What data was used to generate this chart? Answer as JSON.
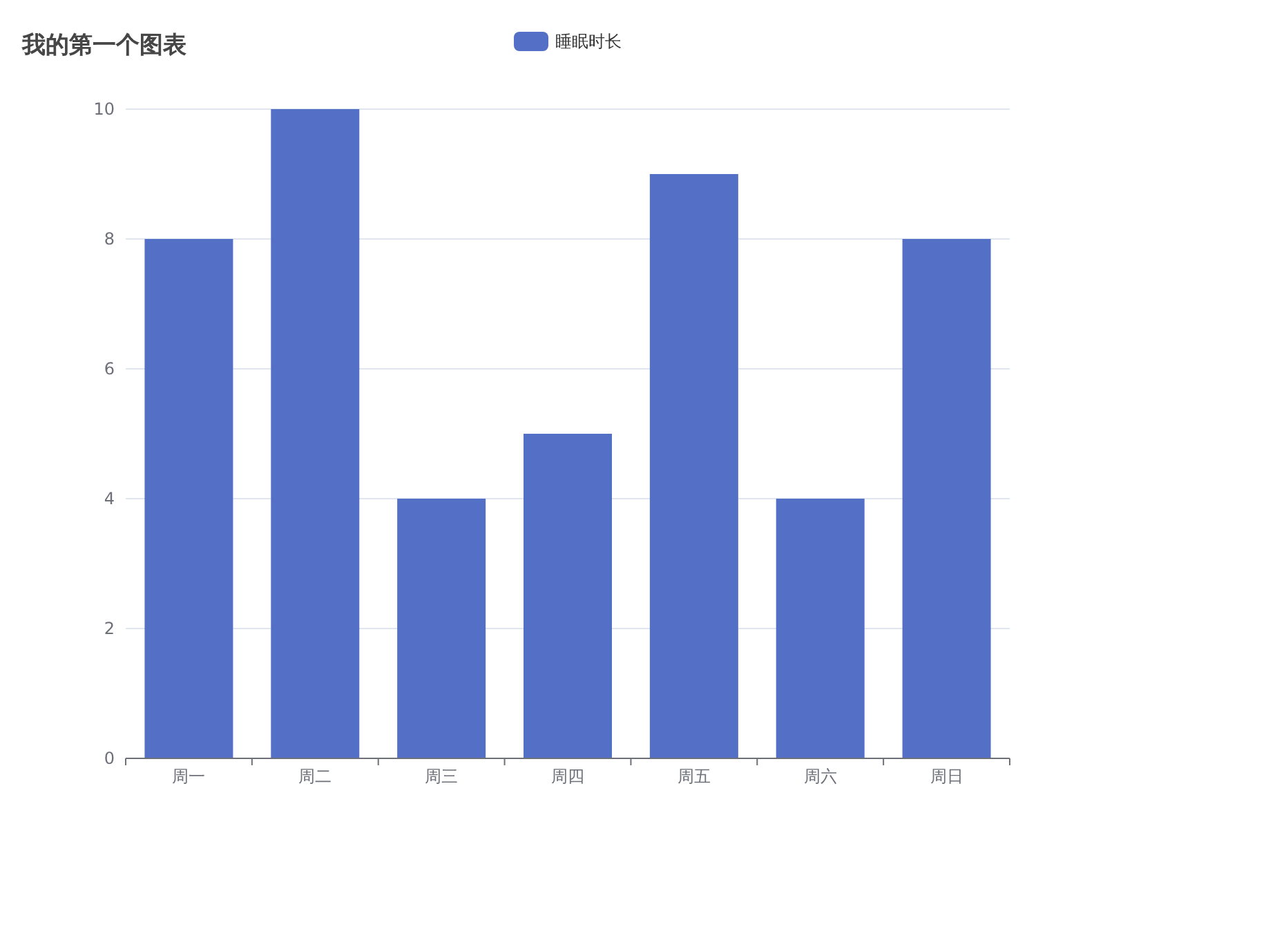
{
  "chart_data": {
    "type": "bar",
    "title": "我的第一个图表",
    "categories": [
      "周一",
      "周二",
      "周三",
      "周四",
      "周五",
      "周六",
      "周日"
    ],
    "series": [
      {
        "name": "睡眠时长",
        "color": "#5470c6",
        "values": [
          8,
          10,
          4,
          5,
          9,
          4,
          8
        ]
      }
    ],
    "ylim": [
      0,
      10
    ],
    "yticks": [
      0,
      2,
      4,
      6,
      8,
      10
    ],
    "grid": "y",
    "legend": "top"
  }
}
